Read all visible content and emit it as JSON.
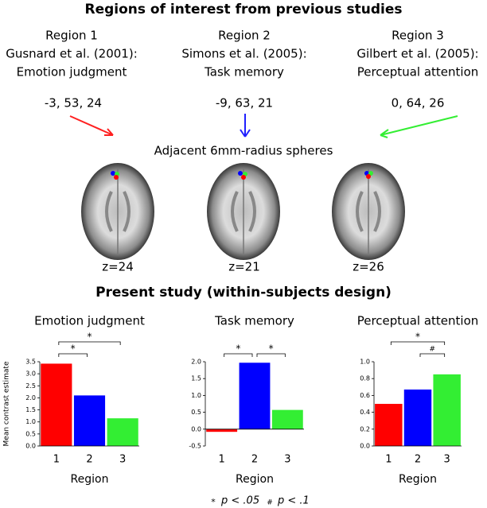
{
  "header": {
    "title": "Regions of interest from previous studies",
    "regions": [
      {
        "name": "Region 1",
        "source": "Gusnard et al. (2001):",
        "task": "Emotion judgment",
        "coords": "-3, 53, 24"
      },
      {
        "name": "Region 2",
        "source": "Simons et al. (2005):",
        "task": "Task memory",
        "coords": "-9, 63, 21"
      },
      {
        "name": "Region 3",
        "source": "Gilbert et al. (2005):",
        "task": "Perceptual attention",
        "coords": "0, 64, 26"
      }
    ],
    "spheres_label": "Adjacent 6mm-radius spheres",
    "slices": [
      "z=24",
      "z=21",
      "z=26"
    ]
  },
  "section_title": "Present study (within-subjects design)",
  "chart_data": [
    {
      "type": "bar",
      "title": "Emotion judgment",
      "ylabel": "Mean contrast estimate",
      "xlabel": "Region",
      "categories": [
        "1",
        "2",
        "3"
      ],
      "values": [
        3.42,
        2.1,
        1.15
      ],
      "colors": [
        "#ff0000",
        "#0000ff",
        "#33ee33"
      ],
      "ylim": [
        0,
        3.5
      ],
      "yticks": [
        {
          "value": 0,
          "label": "0.0"
        },
        0.5,
        {
          "value": 1,
          "label": "1.0"
        },
        1.5,
        {
          "value": 2,
          "label": "2.0"
        },
        2.5,
        {
          "value": 3,
          "label": "3.0"
        },
        3.5
      ],
      "annotations": [
        {
          "label": "*",
          "between": [
            "1",
            "2"
          ]
        },
        {
          "label": "*",
          "between": [
            "1",
            "3"
          ]
        }
      ]
    },
    {
      "type": "bar",
      "title": "Task memory",
      "xlabel": "Region",
      "categories": [
        "1",
        "2",
        "3"
      ],
      "values": [
        -0.08,
        1.97,
        0.57
      ],
      "colors": [
        "#ff0000",
        "#0000ff",
        "#33ee33"
      ],
      "ylim": [
        -0.5,
        2.0
      ],
      "yticks": [
        -0.5,
        {
          "value": 0,
          "label": "0.0"
        },
        0.5,
        {
          "value": 1,
          "label": "1.0"
        },
        1.5,
        {
          "value": 2,
          "label": "2.0"
        }
      ],
      "annotations": [
        {
          "label": "*",
          "between": [
            "1",
            "2"
          ]
        },
        {
          "label": "*",
          "between": [
            "2",
            "3"
          ]
        }
      ]
    },
    {
      "type": "bar",
      "title": "Perceptual attention",
      "xlabel": "Region",
      "categories": [
        "1",
        "2",
        "3"
      ],
      "values": [
        0.5,
        0.67,
        0.85
      ],
      "colors": [
        "#ff0000",
        "#0000ff",
        "#33ee33"
      ],
      "ylim": [
        0,
        1.0
      ],
      "yticks": [
        {
          "value": 0,
          "label": "0.0"
        },
        0.2,
        0.4,
        0.6,
        0.8,
        {
          "value": 1,
          "label": "1.0"
        }
      ],
      "annotations": [
        {
          "label": "#",
          "between": [
            "2",
            "3"
          ]
        },
        {
          "label": "*",
          "between": [
            "1",
            "3"
          ]
        }
      ]
    }
  ],
  "legend": [
    {
      "symbol": "*",
      "text": "p < .05"
    },
    {
      "symbol": "#",
      "text": "p < .1"
    }
  ]
}
